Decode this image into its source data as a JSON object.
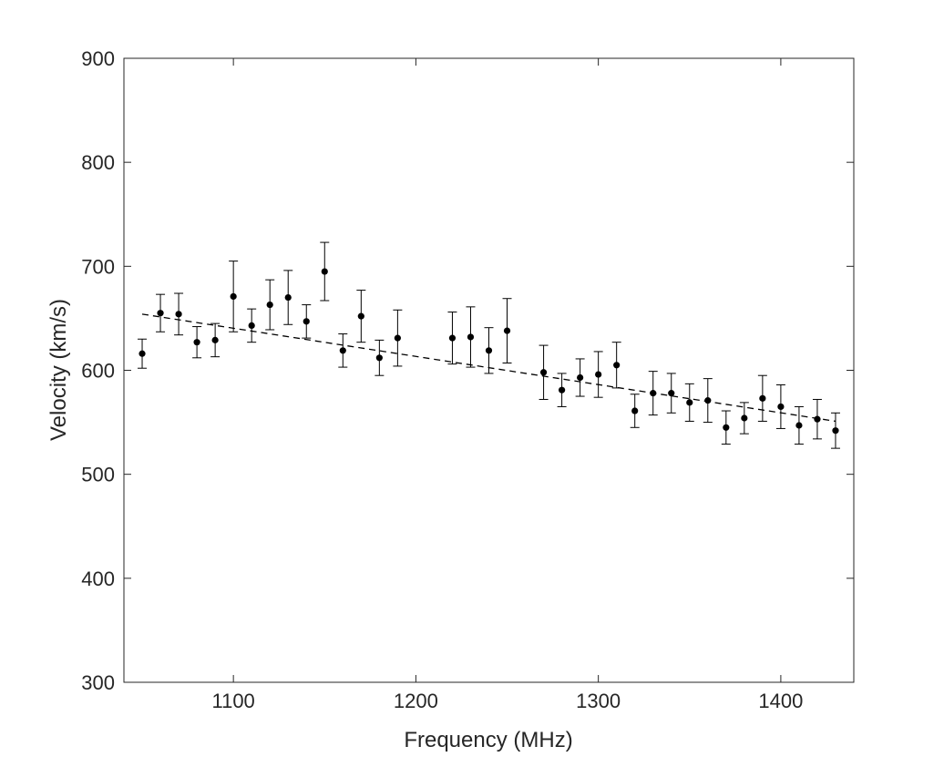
{
  "chart_data": {
    "type": "scatter",
    "title": "",
    "xlabel": "Frequency (MHz)",
    "ylabel": "Velocity (km/s)",
    "xlim": [
      1040,
      1440
    ],
    "ylim": [
      300,
      900
    ],
    "xticks": [
      1100,
      1200,
      1300,
      1400
    ],
    "yticks": [
      300,
      400,
      500,
      600,
      700,
      800,
      900
    ],
    "grid": false,
    "series": [
      {
        "kind": "points-with-errorbars",
        "x": [
          1050,
          1060,
          1070,
          1080,
          1090,
          1100,
          1110,
          1120,
          1130,
          1140,
          1150,
          1160,
          1170,
          1180,
          1190,
          1220,
          1230,
          1240,
          1250,
          1270,
          1280,
          1290,
          1300,
          1310,
          1320,
          1330,
          1340,
          1350,
          1360,
          1370,
          1380,
          1390,
          1400,
          1410,
          1420,
          1430
        ],
        "y": [
          616,
          655,
          654,
          627,
          629,
          671,
          643,
          663,
          670,
          647,
          695,
          619,
          652,
          612,
          631,
          631,
          632,
          619,
          638,
          598,
          581,
          593,
          596,
          605,
          561,
          578,
          578,
          569,
          571,
          545,
          554,
          573,
          565,
          547,
          553,
          542
        ],
        "error": [
          14,
          18,
          20,
          15,
          16,
          34,
          16,
          24,
          26,
          16,
          28,
          16,
          25,
          17,
          27,
          25,
          29,
          22,
          31,
          26,
          16,
          18,
          22,
          22,
          16,
          21,
          19,
          18,
          21,
          16,
          15,
          22,
          21,
          18,
          19,
          17
        ]
      },
      {
        "kind": "fit-line",
        "style": "dashed",
        "x": [
          1050,
          1430
        ],
        "y": [
          654,
          551
        ]
      }
    ]
  }
}
